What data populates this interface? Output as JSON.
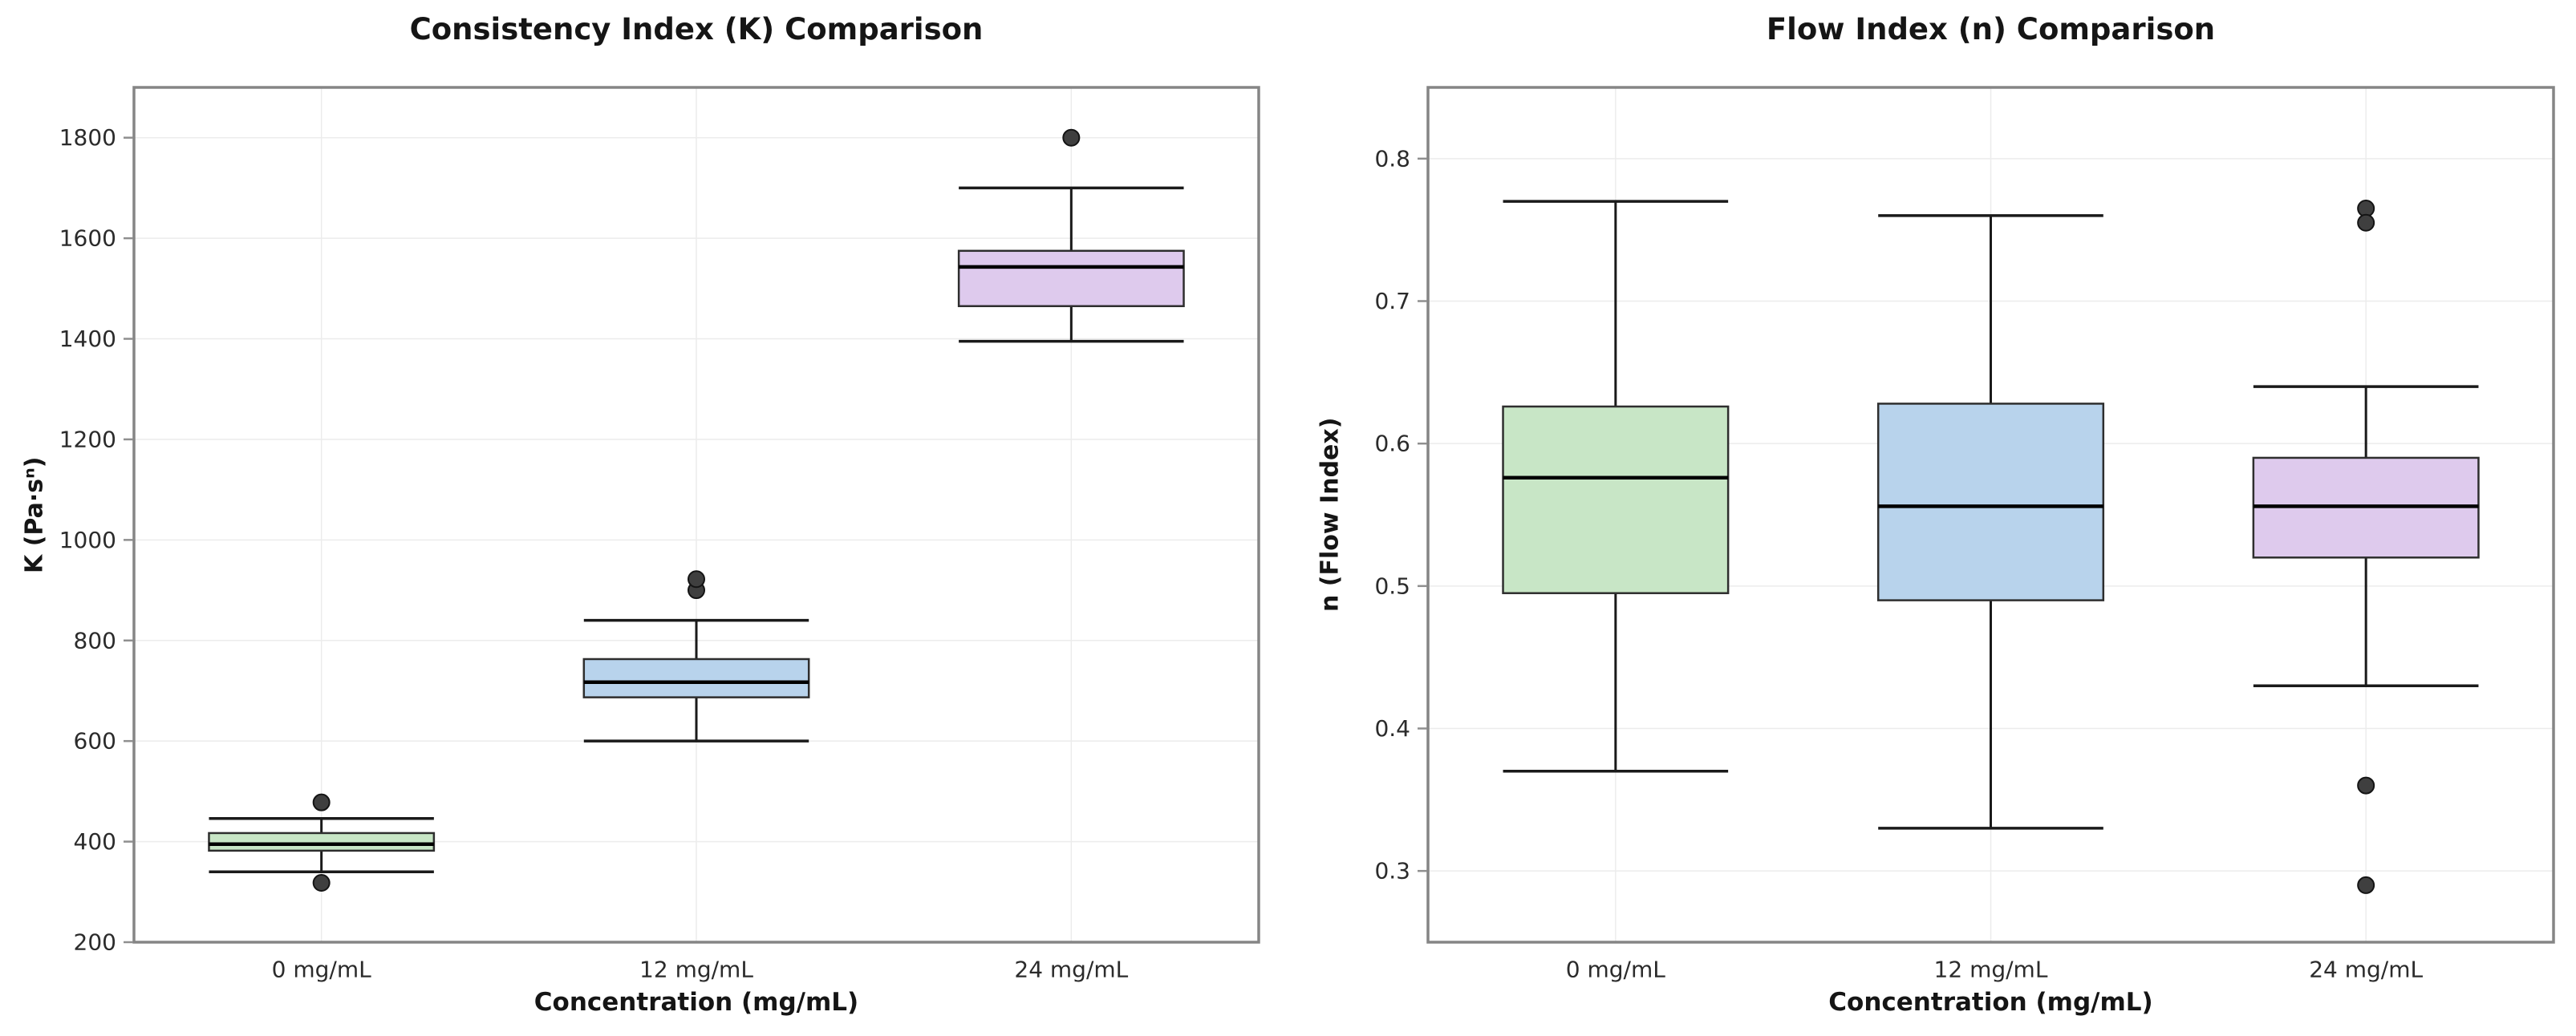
{
  "page": {
    "background": "#ffffff"
  },
  "styles": {
    "grid_color": "#ececec",
    "spine_color": "#858585",
    "tick_mark_color": "#8f8f8f",
    "tick_label_color": "#2b2b2b",
    "title_color": "#151515",
    "box_edge_color": "#2e2e2e",
    "median_color": "#000000",
    "whisker_color": "#1a1a1a",
    "outlier_fill": "#3f3f3f",
    "outlier_stroke": "#141414"
  },
  "chart_data": [
    {
      "type": "box",
      "title": "Consistency Index (K) Comparison",
      "xlabel": "Concentration (mg/mL)",
      "ylabel": "K (Pa·sⁿ)",
      "categories": [
        "0 mg/mL",
        "12 mg/mL",
        "24 mg/mL"
      ],
      "ylim": [
        200,
        1900
      ],
      "yticks": [
        200,
        400,
        600,
        800,
        1000,
        1200,
        1400,
        1600,
        1800
      ],
      "ytick_labels": [
        "200",
        "400",
        "600",
        "800",
        "1000",
        "1200",
        "1400",
        "1600",
        "1800"
      ],
      "grid": true,
      "legend": "none",
      "series": [
        {
          "name": "0 mg/mL",
          "color": "#c8e6c6",
          "whislo": 340,
          "q1": 382,
          "med": 395,
          "q3": 417,
          "whishi": 446,
          "fliers": [
            478,
            318
          ]
        },
        {
          "name": "12 mg/mL",
          "color": "#b8d3ec",
          "whislo": 600,
          "q1": 687,
          "med": 717,
          "q3": 763,
          "whishi": 840,
          "fliers": [
            900,
            922
          ]
        },
        {
          "name": "24 mg/mL",
          "color": "#decaed",
          "whislo": 1395,
          "q1": 1465,
          "med": 1543,
          "q3": 1575,
          "whishi": 1700,
          "fliers": [
            1800
          ]
        }
      ]
    },
    {
      "type": "box",
      "title": "Flow Index (n) Comparison",
      "xlabel": "Concentration (mg/mL)",
      "ylabel": "n (Flow Index)",
      "categories": [
        "0 mg/mL",
        "12 mg/mL",
        "24 mg/mL"
      ],
      "ylim": [
        0.25,
        0.85
      ],
      "yticks": [
        0.3,
        0.4,
        0.5,
        0.6,
        0.7,
        0.8
      ],
      "ytick_labels": [
        "0.3",
        "0.4",
        "0.5",
        "0.6",
        "0.7",
        "0.8"
      ],
      "grid": true,
      "legend": "none",
      "series": [
        {
          "name": "0 mg/mL",
          "color": "#c8e6c6",
          "whislo": 0.37,
          "q1": 0.495,
          "med": 0.576,
          "q3": 0.626,
          "whishi": 0.77,
          "fliers": []
        },
        {
          "name": "12 mg/mL",
          "color": "#b8d3ec",
          "whislo": 0.33,
          "q1": 0.49,
          "med": 0.556,
          "q3": 0.628,
          "whishi": 0.76,
          "fliers": []
        },
        {
          "name": "24 mg/mL",
          "color": "#decaed",
          "whislo": 0.43,
          "q1": 0.52,
          "med": 0.556,
          "q3": 0.59,
          "whishi": 0.64,
          "fliers": [
            0.765,
            0.755,
            0.36,
            0.29
          ]
        }
      ]
    }
  ]
}
